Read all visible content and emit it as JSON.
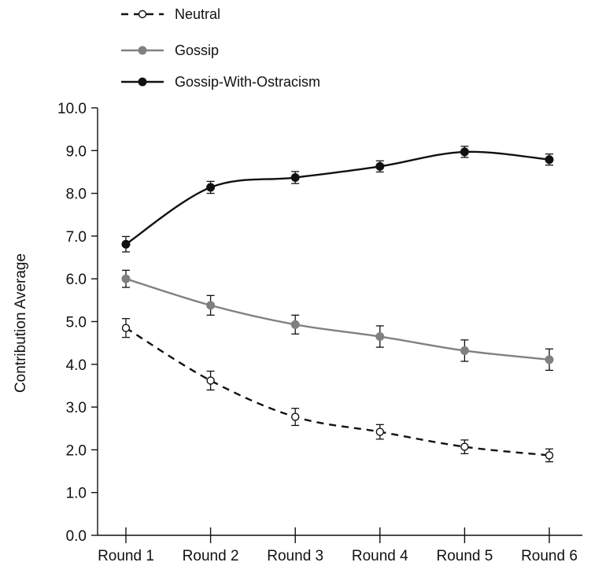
{
  "chart_data": {
    "type": "line",
    "categories": [
      "Round 1",
      "Round 2",
      "Round 3",
      "Round 4",
      "Round 5",
      "Round 6"
    ],
    "ylabel": "Contribution Average",
    "xlabel": "",
    "ylim": [
      0,
      10
    ],
    "yticks": [
      "0.0",
      "1.0",
      "2.0",
      "3.0",
      "4.0",
      "5.0",
      "6.0",
      "7.0",
      "8.0",
      "9.0",
      "10.0"
    ],
    "grid": false,
    "legend_position": "top-left",
    "series": [
      {
        "name": "Neutral",
        "values": [
          4.85,
          3.62,
          2.77,
          2.42,
          2.07,
          1.87
        ],
        "error": [
          0.22,
          0.22,
          0.2,
          0.17,
          0.16,
          0.15
        ],
        "color": "#111111",
        "line_style": "dashed",
        "marker": "open-circle"
      },
      {
        "name": "Gossip",
        "values": [
          6.0,
          5.38,
          4.93,
          4.65,
          4.32,
          4.11
        ],
        "error": [
          0.2,
          0.23,
          0.22,
          0.25,
          0.25,
          0.25
        ],
        "color": "#808080",
        "line_style": "solid",
        "marker": "filled-circle"
      },
      {
        "name": "Gossip-With-Ostracism",
        "values": [
          6.81,
          8.14,
          8.37,
          8.63,
          8.97,
          8.79
        ],
        "error": [
          0.18,
          0.14,
          0.14,
          0.13,
          0.13,
          0.13
        ],
        "color": "#111111",
        "line_style": "solid",
        "marker": "filled-circle"
      }
    ]
  }
}
